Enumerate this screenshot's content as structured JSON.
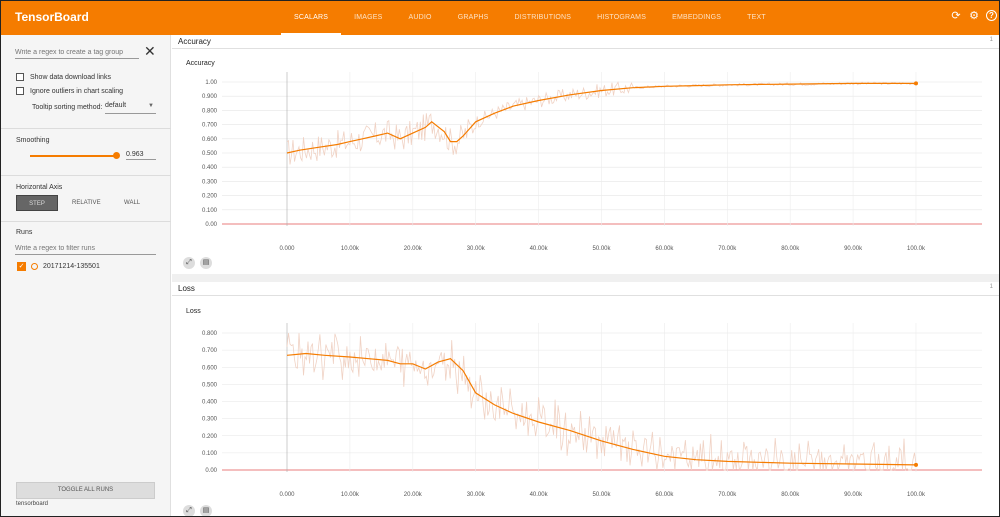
{
  "app": {
    "brand": "TensorBoard",
    "tabs": [
      {
        "label": "SCALARS",
        "active": true
      },
      {
        "label": "IMAGES",
        "active": false
      },
      {
        "label": "AUDIO",
        "active": false
      },
      {
        "label": "GRAPHS",
        "active": false
      },
      {
        "label": "DISTRIBUTIONS",
        "active": false
      },
      {
        "label": "HISTOGRAMS",
        "active": false
      },
      {
        "label": "EMBEDDINGS",
        "active": false
      },
      {
        "label": "TEXT",
        "active": false
      }
    ],
    "icons": [
      "refresh-icon",
      "settings-icon",
      "help-icon"
    ],
    "accent": "#f57c00"
  },
  "sidebar": {
    "tag_regex_placeholder": "Write a regex to create a tag group",
    "show_download": "Show data download links",
    "ignore_outliers": "Ignore outliers in chart scaling",
    "sort_label": "Tooltip sorting method:",
    "sort_value": "default",
    "smoothing_label": "Smoothing",
    "smoothing_value": "0.963",
    "smoothing_fraction": 0.963,
    "axis_label": "Horizontal Axis",
    "axis_options": [
      "STEP",
      "RELATIVE",
      "WALL"
    ],
    "axis_selected": "STEP",
    "runs_label": "Runs",
    "runs_filter_placeholder": "Write a regex to filter runs",
    "runs": [
      {
        "name": "20171214-135501",
        "checked": true
      }
    ],
    "toggle_all": "TOGGLE ALL RUNS",
    "footer": "tensorboard"
  },
  "cards": [
    {
      "header": "Accuracy",
      "count": "1",
      "chart_title": "Accuracy"
    },
    {
      "header": "Loss",
      "count": "1",
      "chart_title": "Loss"
    }
  ],
  "chart_data": [
    {
      "type": "line",
      "title": "Accuracy",
      "xlabel": "",
      "ylabel": "",
      "x_ticks": [
        "0.000",
        "10.00k",
        "20.00k",
        "30.00k",
        "40.00k",
        "50.00k",
        "60.00k",
        "70.00k",
        "80.00k",
        "90.00k",
        "100.0k"
      ],
      "y_ticks": [
        "0.00",
        "0.100",
        "0.200",
        "0.300",
        "0.400",
        "0.500",
        "0.600",
        "0.700",
        "0.800",
        "0.900",
        "1.00"
      ],
      "xlim": [
        0,
        100000
      ],
      "ylim": [
        0,
        1.0
      ],
      "grid": true,
      "series": [
        {
          "name": "20171214-135501",
          "color": "#f57c00",
          "x": [
            0,
            2000,
            5000,
            8000,
            10000,
            12000,
            14000,
            16000,
            18000,
            20000,
            22000,
            23000,
            25000,
            26000,
            27000,
            28000,
            30000,
            33000,
            36000,
            40000,
            45000,
            50000,
            55000,
            60000,
            65000,
            70000,
            80000,
            90000,
            100000
          ],
          "values": [
            0.5,
            0.52,
            0.54,
            0.56,
            0.58,
            0.6,
            0.62,
            0.64,
            0.6,
            0.64,
            0.68,
            0.72,
            0.65,
            0.58,
            0.58,
            0.62,
            0.72,
            0.78,
            0.83,
            0.87,
            0.91,
            0.94,
            0.96,
            0.97,
            0.975,
            0.98,
            0.985,
            0.99,
            0.99
          ]
        }
      ]
    },
    {
      "type": "line",
      "title": "Loss",
      "xlabel": "",
      "ylabel": "",
      "x_ticks": [
        "0.000",
        "10.00k",
        "20.00k",
        "30.00k",
        "40.00k",
        "50.00k",
        "60.00k",
        "70.00k",
        "80.00k",
        "90.00k",
        "100.0k"
      ],
      "y_ticks": [
        "0.00",
        "0.100",
        "0.200",
        "0.300",
        "0.400",
        "0.500",
        "0.600",
        "0.700",
        "0.800"
      ],
      "xlim": [
        0,
        100000
      ],
      "ylim": [
        0,
        0.8
      ],
      "grid": true,
      "series": [
        {
          "name": "20171214-135501",
          "color": "#f57c00",
          "x": [
            0,
            3000,
            6000,
            10000,
            13000,
            16000,
            18000,
            20000,
            22000,
            24000,
            26000,
            28000,
            30000,
            33000,
            36000,
            40000,
            45000,
            50000,
            55000,
            60000,
            65000,
            70000,
            80000,
            90000,
            100000
          ],
          "values": [
            0.67,
            0.68,
            0.67,
            0.66,
            0.65,
            0.64,
            0.62,
            0.62,
            0.59,
            0.63,
            0.65,
            0.58,
            0.45,
            0.38,
            0.33,
            0.28,
            0.23,
            0.17,
            0.12,
            0.08,
            0.06,
            0.05,
            0.04,
            0.035,
            0.03
          ]
        }
      ]
    }
  ]
}
